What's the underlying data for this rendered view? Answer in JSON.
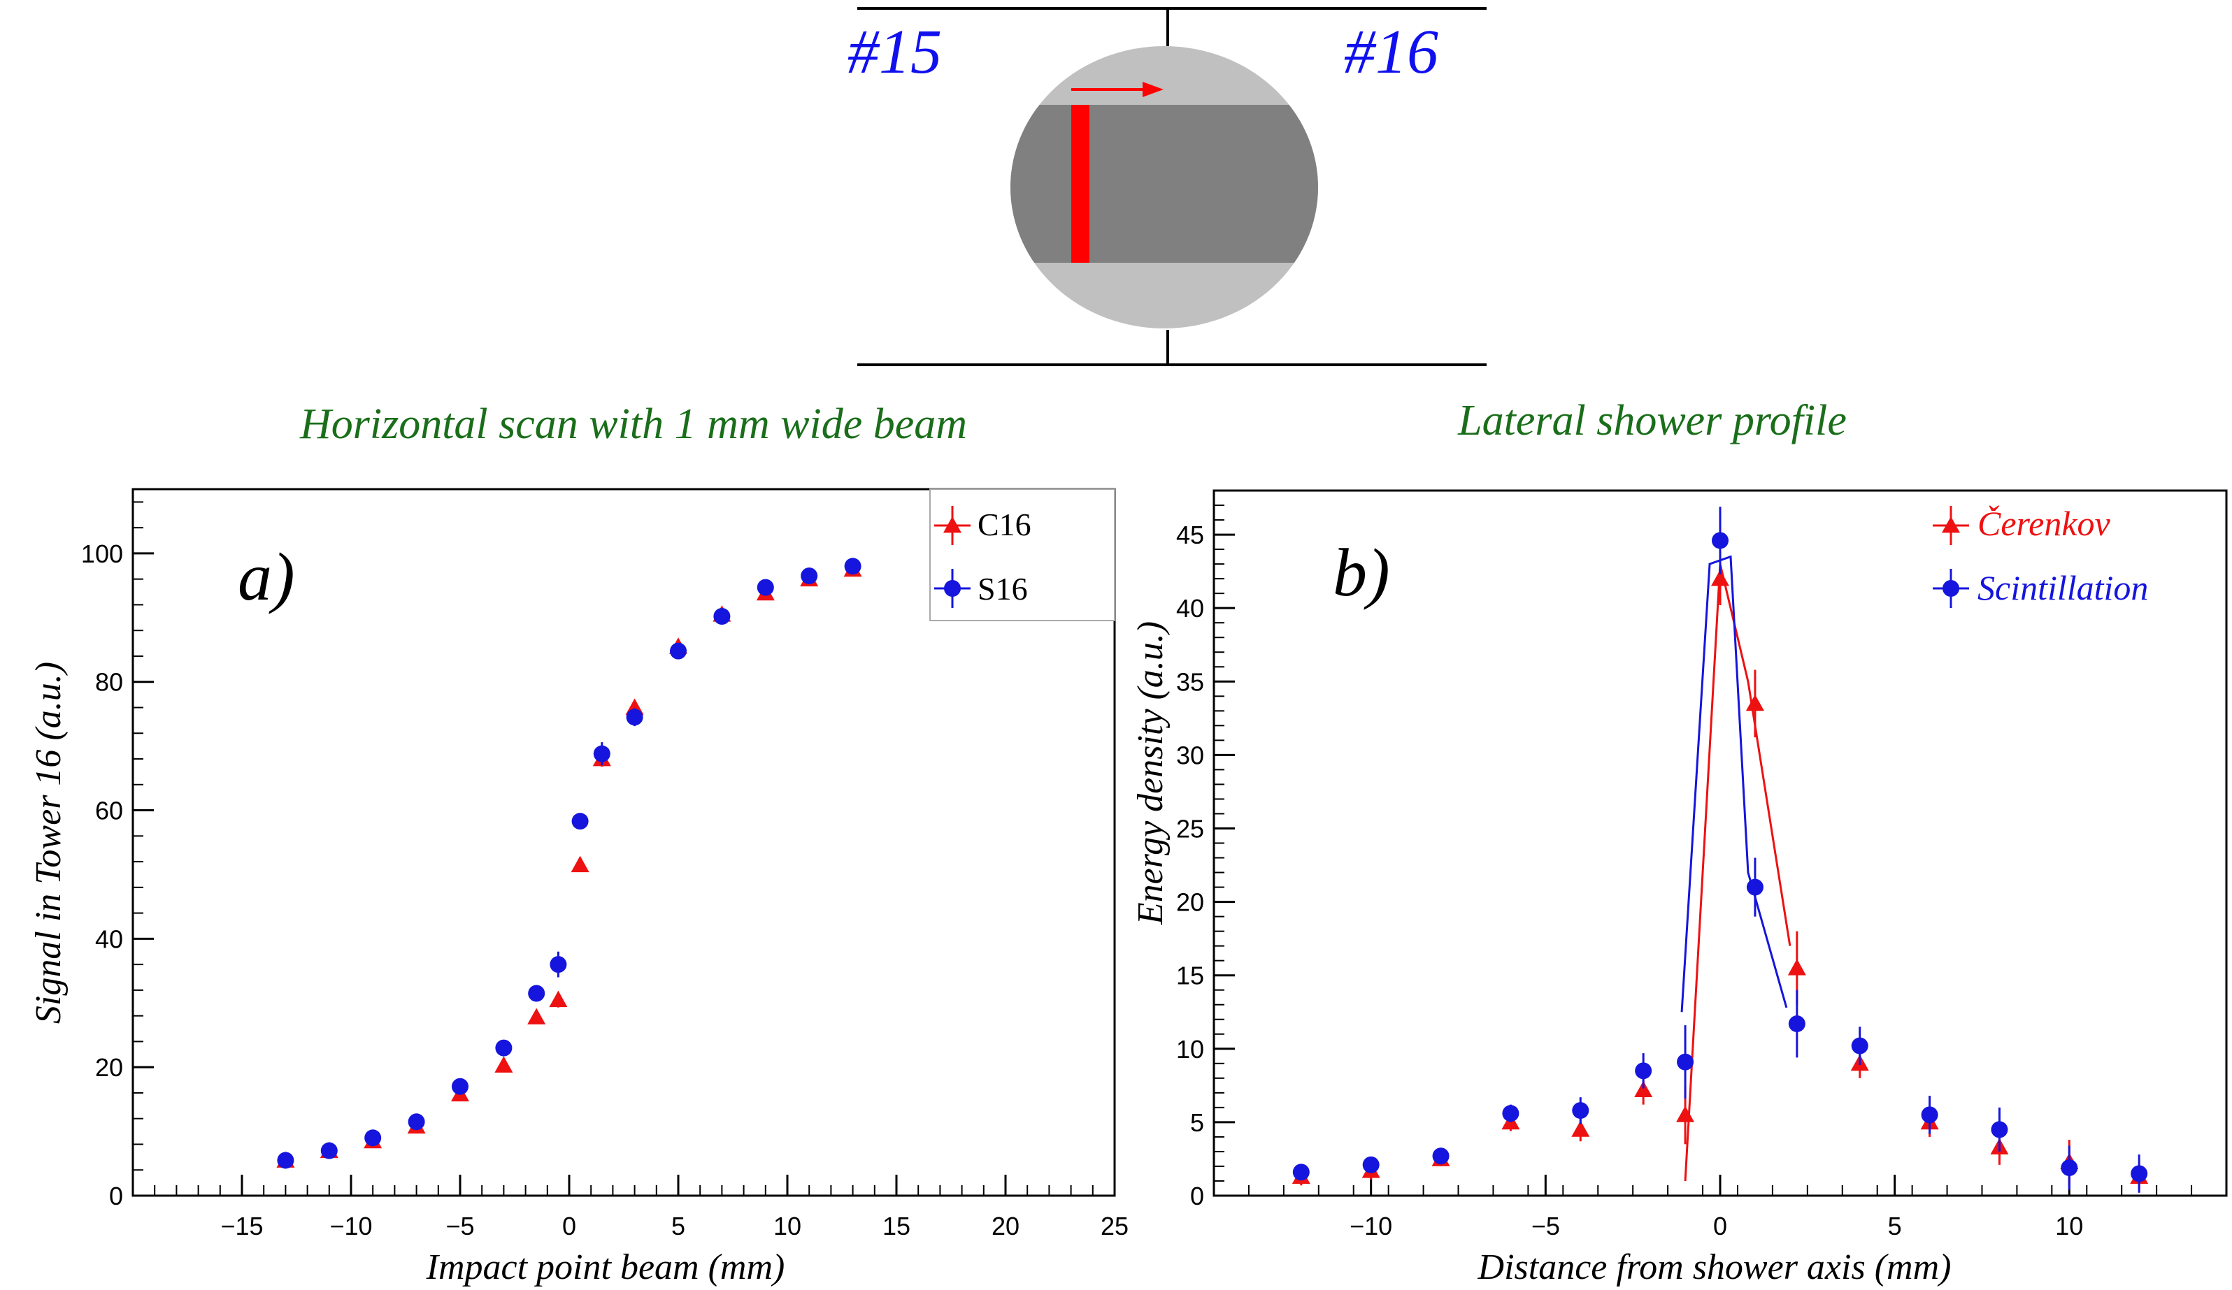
{
  "diagram": {
    "left_label": "#15",
    "right_label": "#16",
    "label_color": "#1010ee",
    "beam_color": "#ff0000",
    "core_color": "#808080",
    "cladding_color": "#c0c0c0"
  },
  "headings": {
    "left": "Horizontal scan with 1 mm wide beam",
    "right": "Lateral shower profile",
    "color": "#1a6e1a"
  },
  "chart_data": [
    {
      "type": "scatter",
      "panel_label": "a)",
      "xlabel": "Impact point beam (mm)",
      "ylabel": "Signal in Tower 16 (a.u.)",
      "xlim": [
        -20,
        25
      ],
      "ylim": [
        0,
        110
      ],
      "xticks": [
        -15,
        -10,
        -5,
        0,
        5,
        10,
        15,
        20,
        25
      ],
      "yticks": [
        0,
        20,
        40,
        60,
        80,
        100
      ],
      "grid": false,
      "legend_position": "top-right",
      "series": [
        {
          "name": "C16",
          "color": "#ee1111",
          "marker": "triangle",
          "points": [
            {
              "x": -13,
              "y": 5.5,
              "err": 0.6
            },
            {
              "x": -11,
              "y": 7,
              "err": 0.6
            },
            {
              "x": -9,
              "y": 8.5,
              "err": 0.6
            },
            {
              "x": -7,
              "y": 10.8,
              "err": 0.8
            },
            {
              "x": -5,
              "y": 15.8,
              "err": 0.8
            },
            {
              "x": -3,
              "y": 20.3,
              "err": 1.0
            },
            {
              "x": -1.5,
              "y": 27.8,
              "err": 1.0
            },
            {
              "x": -0.5,
              "y": 30.5,
              "err": 1.2
            },
            {
              "x": 0.5,
              "y": 51.5,
              "err": 1.0
            },
            {
              "x": 1.5,
              "y": 68,
              "err": 1.2
            },
            {
              "x": 3,
              "y": 76,
              "err": 1.2
            },
            {
              "x": 5,
              "y": 85.5,
              "err": 1.0
            },
            {
              "x": 7,
              "y": 90.5,
              "err": 1.0
            },
            {
              "x": 9,
              "y": 93.8,
              "err": 1.0
            },
            {
              "x": 11,
              "y": 96,
              "err": 0.8
            },
            {
              "x": 13,
              "y": 97.5,
              "err": 0.8
            }
          ]
        },
        {
          "name": "S16",
          "color": "#1515dd",
          "marker": "circle",
          "points": [
            {
              "x": -13,
              "y": 5.5,
              "err": 0.6
            },
            {
              "x": -11,
              "y": 7,
              "err": 0.6
            },
            {
              "x": -9,
              "y": 9,
              "err": 0.6
            },
            {
              "x": -7,
              "y": 11.5,
              "err": 0.8
            },
            {
              "x": -5,
              "y": 17,
              "err": 1.0
            },
            {
              "x": -3,
              "y": 23,
              "err": 1.0
            },
            {
              "x": -1.5,
              "y": 31.5,
              "err": 1.0
            },
            {
              "x": -0.5,
              "y": 36,
              "err": 2.0
            },
            {
              "x": 0.5,
              "y": 58.3,
              "err": 1.0
            },
            {
              "x": 1.5,
              "y": 68.8,
              "err": 1.8
            },
            {
              "x": 3,
              "y": 74.5,
              "err": 1.4
            },
            {
              "x": 5,
              "y": 84.8,
              "err": 1.0
            },
            {
              "x": 7,
              "y": 90.2,
              "err": 1.0
            },
            {
              "x": 9,
              "y": 94.7,
              "err": 1.0
            },
            {
              "x": 11,
              "y": 96.5,
              "err": 0.8
            },
            {
              "x": 13,
              "y": 98,
              "err": 0.8
            }
          ]
        }
      ]
    },
    {
      "type": "scatter",
      "panel_label": "b)",
      "xlabel": "Distance from shower axis (mm)",
      "ylabel": "Energy density (a.u.)",
      "xlim": [
        -14.5,
        14.5
      ],
      "ylim": [
        0,
        48
      ],
      "xticks": [
        -10,
        -5,
        0,
        5,
        10
      ],
      "yticks": [
        0,
        5,
        10,
        15,
        20,
        25,
        30,
        35,
        40,
        45
      ],
      "grid": false,
      "legend_position": "top-right",
      "series": [
        {
          "name": "Čerenkov",
          "color": "#ee1111",
          "marker": "triangle",
          "points": [
            {
              "x": -12,
              "y": 1.3,
              "err": 0.6
            },
            {
              "x": -10,
              "y": 1.7,
              "err": 0.6
            },
            {
              "x": -8,
              "y": 2.5,
              "err": 0.5
            },
            {
              "x": -6,
              "y": 5,
              "err": 0.6
            },
            {
              "x": -4,
              "y": 4.5,
              "err": 0.8
            },
            {
              "x": -2.2,
              "y": 7.2,
              "err": 1.0
            },
            {
              "x": -1,
              "y": 5.5,
              "err": 2.0
            },
            {
              "x": 0,
              "y": 42,
              "err": 1.8
            },
            {
              "x": 1,
              "y": 33.5,
              "err": 2.3
            },
            {
              "x": 2.2,
              "y": 15.5,
              "err": 2.5
            },
            {
              "x": 4,
              "y": 9,
              "err": 1.0
            },
            {
              "x": 6,
              "y": 5,
              "err": 1.0
            },
            {
              "x": 8,
              "y": 3.3,
              "err": 1.2
            },
            {
              "x": 10,
              "y": 2.3,
              "err": 1.5
            },
            {
              "x": 12,
              "y": 1.3,
              "err": 0.8
            }
          ]
        },
        {
          "name": "Scintillation",
          "color": "#1515dd",
          "marker": "circle",
          "points": [
            {
              "x": -12,
              "y": 1.6,
              "err": 0.5
            },
            {
              "x": -10,
              "y": 2.1,
              "err": 0.5
            },
            {
              "x": -8,
              "y": 2.7,
              "err": 0.5
            },
            {
              "x": -6,
              "y": 5.6,
              "err": 0.6
            },
            {
              "x": -4,
              "y": 5.8,
              "err": 0.9
            },
            {
              "x": -2.2,
              "y": 8.5,
              "err": 1.2
            },
            {
              "x": -1,
              "y": 9.1,
              "err": 2.5
            },
            {
              "x": 0,
              "y": 44.6,
              "err": 2.3
            },
            {
              "x": 1,
              "y": 21,
              "err": 2.0
            },
            {
              "x": 2.2,
              "y": 11.7,
              "err": 2.3
            },
            {
              "x": 4,
              "y": 10.2,
              "err": 1.3
            },
            {
              "x": 6,
              "y": 5.5,
              "err": 1.3
            },
            {
              "x": 8,
              "y": 4.5,
              "err": 1.5
            },
            {
              "x": 10,
              "y": 1.9,
              "err": 1.5
            },
            {
              "x": 12,
              "y": 1.5,
              "err": 1.3
            }
          ]
        }
      ],
      "guide_lines": [
        {
          "series": "Čerenkov",
          "points": [
            [
              -1,
              1.0
            ],
            [
              0,
              43
            ],
            [
              0.8,
              35
            ],
            [
              2,
              17
            ]
          ]
        },
        {
          "series": "Scintillation",
          "points": [
            [
              -1.1,
              12.5
            ],
            [
              -0.3,
              43
            ],
            [
              0.3,
              43.5
            ],
            [
              0.8,
              22
            ],
            [
              1.9,
              12.8
            ]
          ]
        }
      ]
    }
  ]
}
